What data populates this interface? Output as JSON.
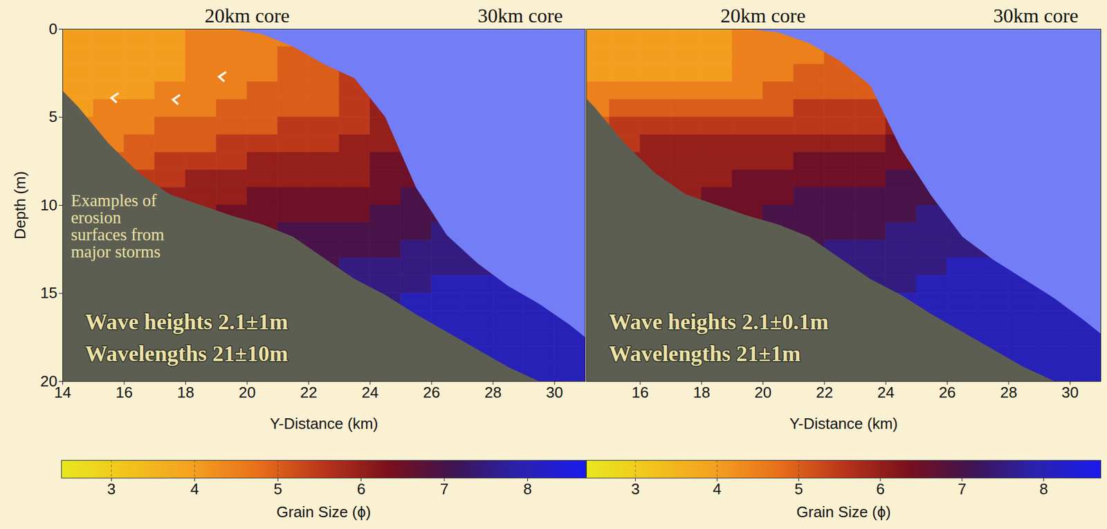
{
  "chart_data": [
    {
      "type": "heatmap",
      "core_labels": [
        {
          "x": 20,
          "label": "20km core"
        },
        {
          "x": 30,
          "label": "30km core"
        }
      ],
      "xlabel": "Y-Distance (km)",
      "ylabel": "Depth (m)",
      "xlim": [
        14,
        31
      ],
      "xticks": [
        14,
        16,
        18,
        20,
        22,
        24,
        26,
        28,
        30
      ],
      "ylim": [
        0,
        20
      ],
      "yticks": [
        0,
        5,
        10,
        15,
        20
      ],
      "annotations": [
        "Wave heights 2.1±1m",
        "Wavelengths 21±10m"
      ],
      "erosion": {
        "text": "Examples of erosion surfaces from major storms",
        "marker": "chevron",
        "color": "#ffffff",
        "points": [
          {
            "x": 15.7,
            "depth": 3.9
          },
          {
            "x": 17.7,
            "depth": 4.0
          },
          {
            "x": 19.2,
            "depth": 2.7
          }
        ]
      },
      "profile_x": [
        14,
        14.5,
        15.5,
        16.5,
        17.5,
        18.5,
        19.5,
        20.5,
        21.5,
        22.5,
        23.5,
        24.5,
        25.5,
        26.5,
        27.5,
        28.5,
        29.5,
        30.5,
        31
      ],
      "seafloor_depth": [
        0,
        0,
        0,
        0,
        0,
        0,
        0,
        0.3,
        1,
        2,
        2.8,
        5,
        9,
        11.7,
        13.3,
        14.6,
        15.6,
        16.8,
        17.5
      ],
      "basement_depth": [
        3.5,
        4.4,
        6.5,
        8.2,
        9.4,
        10,
        10.6,
        11.1,
        11.8,
        13,
        14.2,
        15.1,
        16.2,
        17.2,
        18.2,
        19.2,
        20,
        20,
        20
      ],
      "cells": {
        "x_edges": [
          14,
          15,
          16,
          17,
          18,
          19,
          20,
          21,
          22,
          23,
          24,
          25,
          26,
          27,
          28,
          29,
          30,
          31
        ],
        "depth_edges": [
          0,
          1,
          2,
          3,
          4,
          5,
          6,
          7,
          8,
          9,
          10,
          11,
          12,
          13,
          14,
          15,
          16,
          17,
          18,
          19,
          20
        ],
        "grain_size": [
          [
            4,
            4,
            4,
            4,
            4,
            4.5,
            null,
            null,
            null,
            null,
            null,
            null,
            null,
            null,
            null,
            null,
            null,
            null,
            null,
            null
          ],
          [
            4,
            4,
            4,
            4,
            4.5,
            4.5,
            4.5,
            5,
            null,
            null,
            null,
            null,
            null,
            null,
            null,
            null,
            null,
            null,
            null,
            null
          ],
          [
            4,
            4,
            4,
            4,
            4.5,
            4.5,
            5,
            5,
            5.5,
            null,
            null,
            null,
            null,
            null,
            null,
            null,
            null,
            null,
            null,
            null
          ],
          [
            4,
            4,
            4,
            4.5,
            4.5,
            5,
            5,
            5.5,
            5.5,
            6,
            null,
            null,
            null,
            null,
            null,
            null,
            null,
            null,
            null,
            null
          ],
          [
            4.5,
            4.5,
            4.5,
            4.5,
            4.5,
            5,
            5,
            5.5,
            6,
            6,
            6,
            null,
            null,
            null,
            null,
            null,
            null,
            null,
            null,
            null
          ],
          [
            4.5,
            4.5,
            4.5,
            4.5,
            5,
            5,
            5.5,
            5.5,
            6,
            6,
            6.5,
            null,
            null,
            null,
            null,
            null,
            null,
            null,
            null,
            null
          ],
          [
            4.5,
            4.5,
            4.5,
            5,
            5,
            5,
            5.5,
            6,
            6,
            6.5,
            6.5,
            6.5,
            null,
            null,
            null,
            null,
            null,
            null,
            null,
            null
          ],
          [
            4.5,
            5,
            5,
            5,
            5,
            5.5,
            5.5,
            6,
            6,
            6.5,
            6.5,
            7,
            7,
            null,
            null,
            null,
            null,
            null,
            null,
            null
          ],
          [
            null,
            5,
            5,
            5,
            5,
            5.5,
            5.5,
            6,
            6,
            6.5,
            6.5,
            7,
            7,
            7,
            null,
            null,
            null,
            null,
            null,
            null
          ],
          [
            null,
            null,
            5.5,
            5.5,
            5.5,
            5.5,
            6,
            6,
            6,
            6.5,
            6.5,
            7,
            7,
            7.5,
            7.5,
            null,
            null,
            null,
            null,
            null
          ],
          [
            null,
            null,
            null,
            6,
            6,
            6,
            6,
            6.5,
            6.5,
            6.5,
            7,
            7,
            7,
            7.5,
            7.5,
            7.5,
            null,
            null,
            null,
            null
          ],
          [
            null,
            null,
            null,
            null,
            null,
            null,
            null,
            6.5,
            6.5,
            7,
            7,
            7,
            7.5,
            7.5,
            7.5,
            8,
            8,
            null,
            null,
            null
          ],
          [
            null,
            null,
            null,
            null,
            null,
            null,
            null,
            null,
            null,
            null,
            7,
            7.5,
            7.5,
            7.5,
            8,
            8,
            8,
            8,
            null,
            null
          ],
          [
            null,
            null,
            null,
            null,
            null,
            null,
            null,
            null,
            null,
            null,
            null,
            null,
            7.5,
            7.5,
            8,
            8,
            8,
            8,
            8,
            null
          ],
          [
            null,
            null,
            null,
            null,
            null,
            null,
            null,
            null,
            null,
            null,
            null,
            null,
            null,
            7.5,
            8,
            8,
            8,
            8,
            8,
            8
          ],
          [
            null,
            null,
            null,
            null,
            null,
            null,
            null,
            null,
            null,
            null,
            null,
            null,
            null,
            null,
            null,
            8,
            8,
            8,
            8,
            8
          ],
          [
            null,
            null,
            null,
            null,
            null,
            null,
            null,
            null,
            null,
            null,
            null,
            null,
            null,
            null,
            null,
            null,
            8,
            8,
            8,
            8
          ]
        ]
      },
      "colorbar": {
        "label": "Grain Size (ϕ)",
        "range": [
          2.4,
          8.7
        ],
        "ticks": [
          3,
          4,
          5,
          6,
          7,
          8
        ]
      }
    },
    {
      "type": "heatmap",
      "core_labels": [
        {
          "x": 20,
          "label": "20km core"
        },
        {
          "x": 30,
          "label": "30km core"
        }
      ],
      "xlabel": "Y-Distance (km)",
      "xlim": [
        14.25,
        31
      ],
      "xticks": [
        16,
        18,
        20,
        22,
        24,
        26,
        28,
        30
      ],
      "ylim": [
        0,
        20
      ],
      "tick_labels": "x",
      "annotations": [
        "Wave heights 2.1±0.1m",
        "Wavelengths 21±1m"
      ],
      "profile_x": [
        14,
        14.5,
        15.5,
        16.5,
        17.5,
        18.5,
        19.5,
        20.5,
        21.5,
        22.5,
        23.5,
        24.5,
        25.5,
        26.5,
        27.5,
        28.5,
        29.5,
        30.5,
        31
      ],
      "seafloor_depth": [
        0,
        0,
        0,
        0,
        0,
        0,
        0,
        0.2,
        0.8,
        1.8,
        3.2,
        6.8,
        9.5,
        11.8,
        13.1,
        14.2,
        15.3,
        16.6,
        17.3
      ],
      "basement_depth": [
        3.5,
        4.4,
        6.5,
        8.2,
        9.4,
        10,
        10.6,
        11.1,
        11.8,
        13,
        14.2,
        15.1,
        16.2,
        17.2,
        18.2,
        19.2,
        20,
        20,
        20
      ],
      "cells": {
        "x_edges": [
          14,
          15,
          16,
          17,
          18,
          19,
          20,
          21,
          22,
          23,
          24,
          25,
          26,
          27,
          28,
          29,
          30,
          31
        ],
        "depth_edges": [
          0,
          1,
          2,
          3,
          4,
          5,
          6,
          7,
          8,
          9,
          10,
          11,
          12,
          13,
          14,
          15,
          16,
          17,
          18,
          19,
          20
        ],
        "grain_size": [
          [
            4,
            4,
            4,
            4.5,
            4.5,
            5,
            null,
            null,
            null,
            null,
            null,
            null,
            null,
            null,
            null,
            null,
            null,
            null,
            null,
            null
          ],
          [
            4,
            4,
            4,
            4.5,
            5,
            5.5,
            5.5,
            6,
            null,
            null,
            null,
            null,
            null,
            null,
            null,
            null,
            null,
            null,
            null,
            null
          ],
          [
            4,
            4,
            4,
            4.5,
            5,
            5.5,
            6,
            6,
            6,
            null,
            null,
            null,
            null,
            null,
            null,
            null,
            null,
            null,
            null,
            null
          ],
          [
            4,
            4,
            4,
            4.5,
            5,
            5.5,
            6,
            6,
            6,
            6,
            null,
            null,
            null,
            null,
            null,
            null,
            null,
            null,
            null,
            null
          ],
          [
            4,
            4,
            4,
            4.5,
            5,
            5.5,
            6,
            6,
            6,
            6.5,
            6.5,
            null,
            null,
            null,
            null,
            null,
            null,
            null,
            null,
            null
          ],
          [
            4.5,
            4.5,
            4.5,
            4.5,
            5,
            5.5,
            6,
            6,
            6.5,
            6.5,
            6.5,
            null,
            null,
            null,
            null,
            null,
            null,
            null,
            null,
            null
          ],
          [
            4.5,
            4.5,
            4.5,
            5,
            5,
            5.5,
            6,
            6,
            6.5,
            6.5,
            7,
            7,
            null,
            null,
            null,
            null,
            null,
            null,
            null,
            null
          ],
          [
            4.5,
            4.5,
            5,
            5,
            5.5,
            5.5,
            6,
            6.5,
            6.5,
            7,
            7,
            7,
            7,
            null,
            null,
            null,
            null,
            null,
            null,
            null
          ],
          [
            null,
            5,
            5,
            5,
            5.5,
            5.5,
            6,
            6.5,
            6.5,
            7,
            7,
            7,
            7.5,
            7.5,
            null,
            null,
            null,
            null,
            null,
            null
          ],
          [
            null,
            null,
            5,
            5,
            5.5,
            5.5,
            6,
            6.5,
            6.5,
            7,
            7,
            7,
            7.5,
            7.5,
            7.5,
            null,
            null,
            null,
            null,
            null
          ],
          [
            null,
            null,
            null,
            null,
            null,
            6,
            6.5,
            6.5,
            7,
            7,
            7,
            7.5,
            7.5,
            7.5,
            7.5,
            8,
            null,
            null,
            null,
            null
          ],
          [
            null,
            null,
            null,
            null,
            null,
            null,
            null,
            null,
            7,
            7,
            7.5,
            7.5,
            7.5,
            7.5,
            8,
            8,
            8,
            null,
            null,
            null
          ],
          [
            null,
            null,
            null,
            null,
            null,
            null,
            null,
            null,
            null,
            null,
            7.5,
            7.5,
            7.5,
            8,
            8,
            8,
            8,
            8,
            null,
            null
          ],
          [
            null,
            null,
            null,
            null,
            null,
            null,
            null,
            null,
            null,
            null,
            null,
            null,
            7.5,
            8,
            8,
            8,
            8,
            8,
            8,
            null
          ],
          [
            null,
            null,
            null,
            null,
            null,
            null,
            null,
            null,
            null,
            null,
            null,
            null,
            null,
            8,
            8,
            8,
            8,
            8,
            8,
            8
          ],
          [
            null,
            null,
            null,
            null,
            null,
            null,
            null,
            null,
            null,
            null,
            null,
            null,
            null,
            null,
            8,
            8,
            8,
            8,
            8,
            8
          ],
          [
            null,
            null,
            null,
            null,
            null,
            null,
            null,
            null,
            null,
            null,
            null,
            null,
            null,
            null,
            null,
            8,
            8,
            8,
            8,
            8
          ]
        ]
      },
      "colorbar": {
        "label": "Grain Size (ϕ)",
        "range": [
          2.4,
          8.7
        ],
        "ticks": [
          3,
          4,
          5,
          6,
          7,
          8
        ]
      }
    }
  ]
}
